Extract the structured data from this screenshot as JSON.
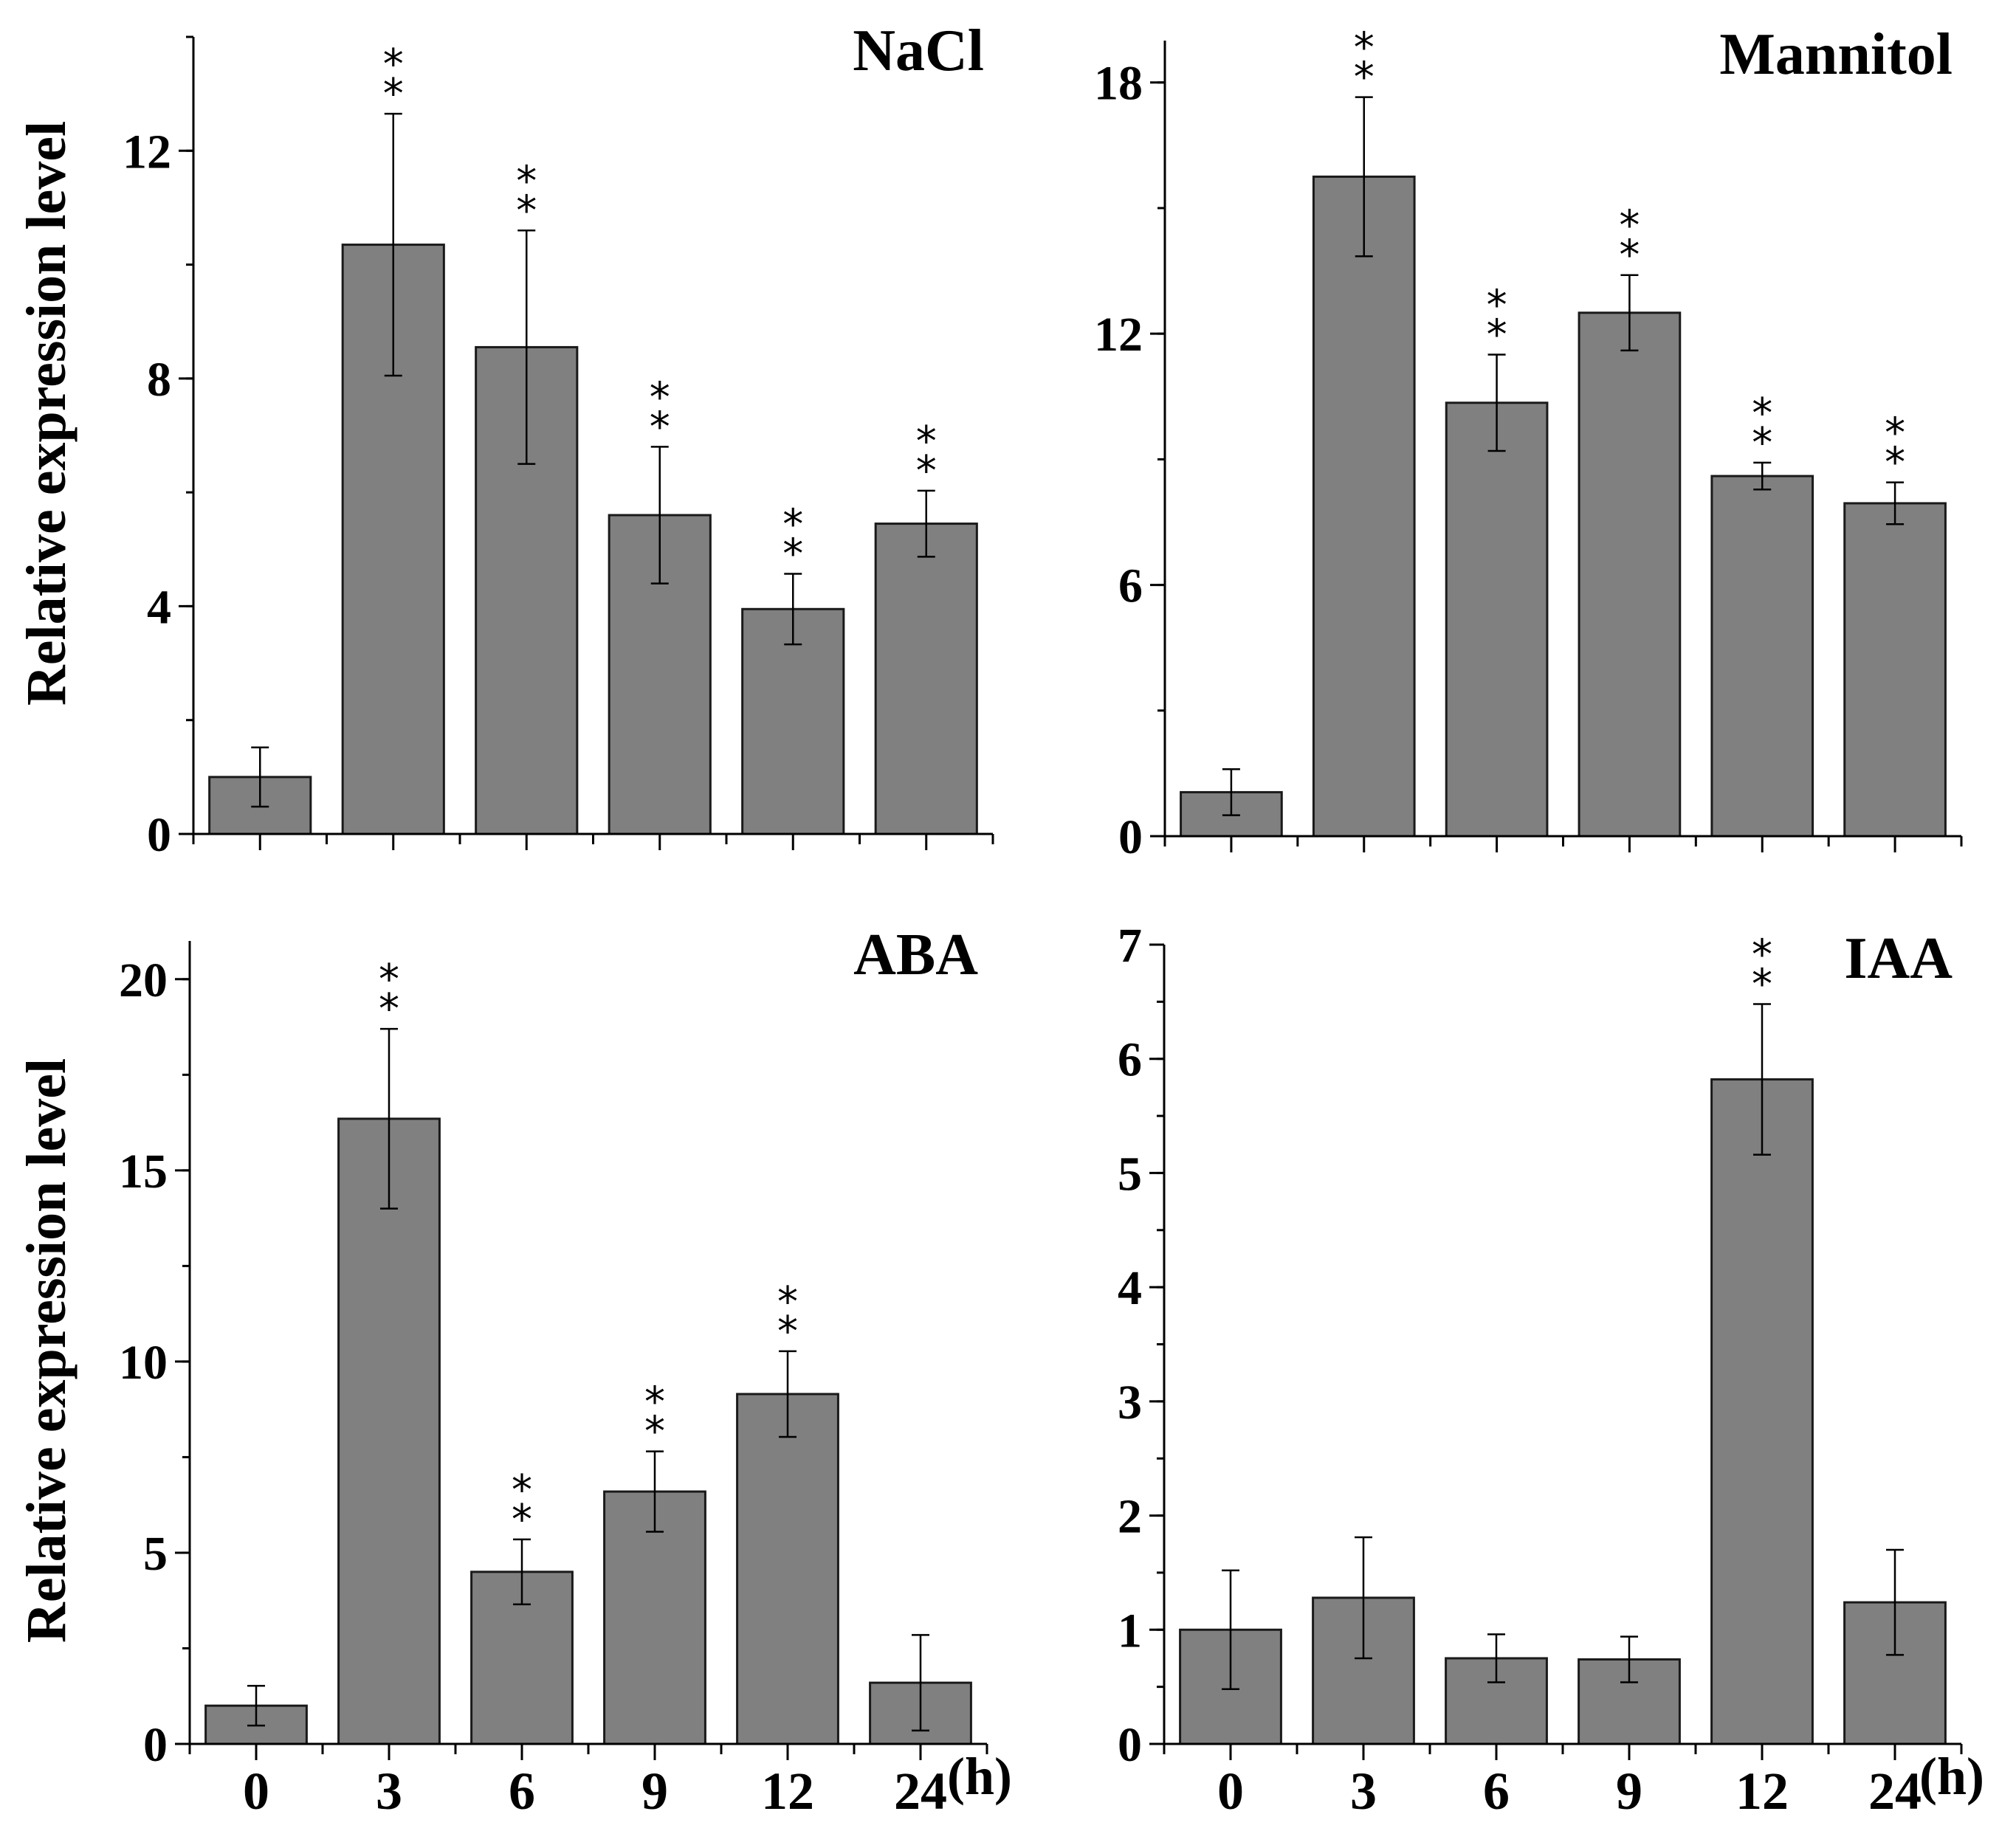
{
  "figure": {
    "y_axis_label": "Relative expression level",
    "x_unit_label": "(h)"
  },
  "chart_data": [
    {
      "type": "bar",
      "title": "NaCl",
      "categories": [
        "0",
        "3",
        "6",
        "9",
        "12",
        "24"
      ],
      "values": [
        1.0,
        10.35,
        8.55,
        5.6,
        3.95,
        5.45
      ],
      "errors": [
        0.52,
        2.3,
        2.05,
        1.2,
        0.62,
        0.58
      ],
      "significance": [
        "",
        "**",
        "**",
        "**",
        "**",
        "**"
      ],
      "ylabel": "Relative expression level",
      "xlabel": "",
      "ylim": [
        0,
        14
      ],
      "yticks": [
        0,
        4,
        8,
        12
      ],
      "minor_step": 2
    },
    {
      "type": "bar",
      "title": "Mannitol",
      "categories": [
        "0",
        "3",
        "6",
        "9",
        "12",
        "24"
      ],
      "values": [
        1.05,
        15.75,
        10.35,
        12.5,
        8.6,
        7.95
      ],
      "errors": [
        0.55,
        1.9,
        1.15,
        0.9,
        0.32,
        0.5
      ],
      "significance": [
        "",
        "**",
        "**",
        "**",
        "**",
        "**"
      ],
      "ylabel": "",
      "xlabel": "",
      "ylim": [
        0,
        19
      ],
      "yticks": [
        0,
        6,
        12,
        18
      ],
      "minor_step": 3
    },
    {
      "type": "bar",
      "title": "ABA",
      "categories": [
        "0",
        "3",
        "6",
        "9",
        "12",
        "24"
      ],
      "values": [
        1.0,
        16.35,
        4.5,
        6.6,
        9.15,
        1.6
      ],
      "errors": [
        0.52,
        2.35,
        0.85,
        1.05,
        1.12,
        1.25
      ],
      "significance": [
        "",
        "**",
        "**",
        "**",
        "**",
        ""
      ],
      "ylabel": "Relative expression level",
      "xlabel": "(h)",
      "ylim": [
        0,
        21
      ],
      "yticks": [
        0,
        5,
        10,
        15,
        20
      ],
      "minor_step": 2.5
    },
    {
      "type": "bar",
      "title": "IAA",
      "categories": [
        "0",
        "3",
        "6",
        "9",
        "12",
        "24"
      ],
      "values": [
        1.0,
        1.28,
        0.75,
        0.74,
        5.82,
        1.24
      ],
      "errors": [
        0.52,
        0.53,
        0.21,
        0.2,
        0.66,
        0.46
      ],
      "significance": [
        "",
        "",
        "",
        "",
        "**",
        ""
      ],
      "ylabel": "",
      "xlabel": "(h)",
      "ylim": [
        0,
        7
      ],
      "yticks": [
        0,
        1,
        2,
        3,
        4,
        5,
        6,
        7
      ],
      "minor_step": 0.5
    }
  ]
}
